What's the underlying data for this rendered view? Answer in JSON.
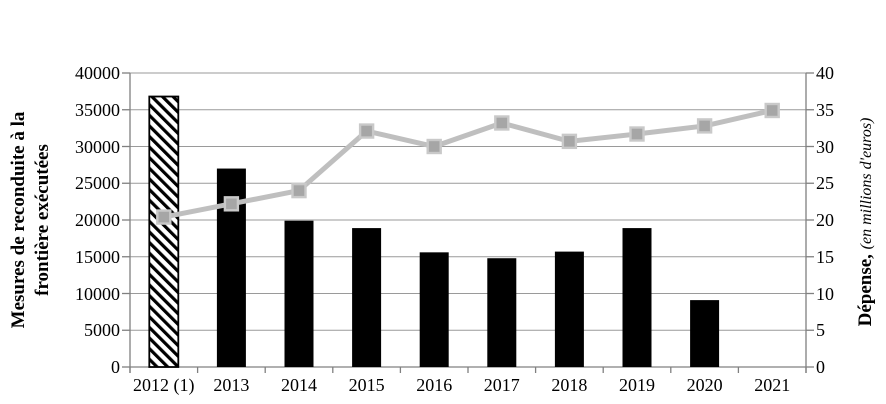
{
  "chart_data": {
    "type": "bar",
    "subtype": "combo-bar-line-dual-axis",
    "title": "",
    "legend": "none",
    "grid": true,
    "categories": [
      "2012 (1)",
      "2013",
      "2014",
      "2015",
      "2016",
      "2017",
      "2018",
      "2019",
      "2020",
      "2021"
    ],
    "series": [
      {
        "name": "Mesures de reconduite à la frontière exécutées",
        "type": "bar",
        "axis": "left",
        "first_bar_hatched": true,
        "values": [
          36800,
          27000,
          19900,
          18900,
          15600,
          14800,
          15700,
          18900,
          9100,
          null
        ]
      },
      {
        "name": "Dépense (en millions d'euros)",
        "type": "line",
        "marker": "square",
        "axis": "right",
        "values": [
          20.4,
          22.2,
          24.0,
          32.1,
          30.0,
          33.2,
          30.7,
          31.7,
          32.8,
          34.9
        ]
      }
    ],
    "left_axis": {
      "title_line1": "Mesures de reconduite à la",
      "title_line2": "frontière exécutées",
      "min": 0,
      "max": 40000,
      "step": 5000,
      "ticks": [
        "0",
        "5000",
        "10000",
        "15000",
        "20000",
        "25000",
        "30000",
        "35000",
        "40000"
      ]
    },
    "right_axis": {
      "title_bold": "Dépense,",
      "title_italic": "(en millions d'euros)",
      "min": 0,
      "max": 40,
      "step": 5,
      "ticks": [
        "0",
        "5",
        "10",
        "15",
        "20",
        "25",
        "30",
        "35",
        "40"
      ]
    },
    "colors": {
      "bar": "#000000",
      "hatch_bg": "#ffffff",
      "line": "#bfbfbf",
      "marker_fill": "#a6a6a6",
      "marker_border": "#c9c9c9",
      "grid": "#9a9a9a",
      "axis": "#808080",
      "text": "#000000"
    }
  }
}
